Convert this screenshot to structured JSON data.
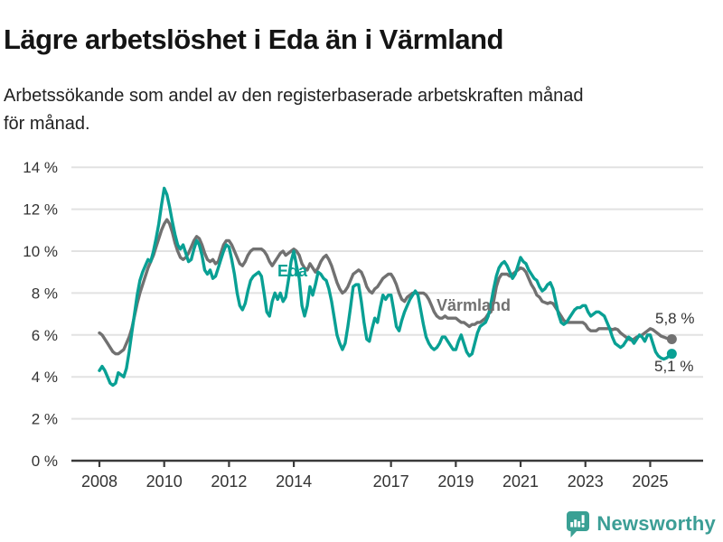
{
  "header": {
    "title": "Lägre arbetslöshet i Eda än i Värmland",
    "subtitle": "Arbetssökande som andel av den registerbaserade arbetskraften månad\nför månad."
  },
  "footer": {
    "brand": "Newsworthy"
  },
  "colors": {
    "eda": "#09A094",
    "varmland": "#717171",
    "axis": "#3A3A3A",
    "grid": "#E2E2E2",
    "text": "#333333",
    "logo": "#3AA094"
  },
  "chart_data": {
    "type": "line",
    "unit": "%",
    "frequency": "monthly",
    "x_start": "2008-01",
    "x_end": "2025-09",
    "ylim": [
      0,
      14
    ],
    "grid": true,
    "legend_position": "inline-labels",
    "ytick_values": [
      0,
      2,
      4,
      6,
      8,
      10,
      12,
      14
    ],
    "ytick_labels": [
      "0 %",
      "2 %",
      "4 %",
      "6 %",
      "8 %",
      "10 %",
      "12 %",
      "14 %"
    ],
    "xtick_years": [
      2008,
      2010,
      2012,
      2014,
      2017,
      2019,
      2021,
      2023,
      2025
    ],
    "series": [
      {
        "name": "Värmland",
        "color": "#717171",
        "end_value": 5.8,
        "end_label": "5,8 %",
        "values": [
          6.1,
          6.0,
          5.8,
          5.6,
          5.4,
          5.2,
          5.1,
          5.1,
          5.2,
          5.3,
          5.6,
          5.9,
          6.3,
          6.9,
          7.5,
          8.0,
          8.4,
          8.8,
          9.2,
          9.5,
          9.8,
          10.2,
          10.6,
          11.0,
          11.3,
          11.5,
          11.3,
          10.9,
          10.4,
          10.0,
          9.7,
          9.6,
          9.7,
          9.9,
          10.2,
          10.5,
          10.7,
          10.6,
          10.3,
          9.9,
          9.6,
          9.5,
          9.6,
          9.4,
          9.5,
          9.9,
          10.3,
          10.5,
          10.5,
          10.3,
          10.0,
          9.7,
          9.4,
          9.3,
          9.5,
          9.8,
          10.0,
          10.1,
          10.1,
          10.1,
          10.1,
          10.0,
          9.8,
          9.5,
          9.3,
          9.5,
          9.7,
          9.9,
          10.0,
          9.8,
          9.9,
          10.0,
          10.1,
          10.0,
          9.8,
          9.4,
          9.2,
          9.1,
          9.4,
          9.2,
          9.0,
          9.2,
          9.5,
          9.7,
          9.8,
          9.6,
          9.3,
          8.9,
          8.5,
          8.2,
          8.0,
          8.1,
          8.3,
          8.6,
          8.9,
          9.0,
          9.1,
          9.0,
          8.7,
          8.3,
          8.1,
          8.0,
          8.2,
          8.3,
          8.5,
          8.7,
          8.8,
          8.9,
          8.9,
          8.7,
          8.4,
          8.0,
          7.7,
          7.6,
          7.8,
          7.9,
          8.0,
          8.0,
          8.0,
          8.0,
          8.0,
          7.9,
          7.7,
          7.4,
          7.1,
          6.9,
          6.8,
          6.8,
          6.9,
          6.8,
          6.8,
          6.8,
          6.8,
          6.7,
          6.6,
          6.6,
          6.5,
          6.4,
          6.5,
          6.5,
          6.6,
          6.6,
          6.7,
          6.8,
          7.0,
          7.1,
          7.6,
          8.3,
          8.7,
          8.9,
          8.9,
          8.9,
          8.8,
          8.9,
          9.0,
          9.1,
          9.2,
          9.15,
          9.0,
          8.7,
          8.4,
          8.2,
          7.9,
          7.8,
          7.6,
          7.55,
          7.5,
          7.55,
          7.5,
          7.3,
          7.1,
          6.9,
          6.7,
          6.6,
          6.6,
          6.6,
          6.6,
          6.6,
          6.6,
          6.6,
          6.5,
          6.3,
          6.2,
          6.2,
          6.2,
          6.3,
          6.3,
          6.3,
          6.3,
          6.3,
          6.25,
          6.3,
          6.25,
          6.1,
          6.0,
          5.9,
          5.8,
          5.75,
          5.8,
          5.9,
          5.95,
          6.0,
          6.1,
          6.2,
          6.3,
          6.25,
          6.15,
          6.05,
          5.95,
          5.9,
          5.85,
          5.8,
          5.8
        ]
      },
      {
        "name": "Eda",
        "color": "#09A094",
        "end_value": 5.1,
        "end_label": "5,1 %",
        "values": [
          4.3,
          4.5,
          4.3,
          4.0,
          3.7,
          3.6,
          3.7,
          4.2,
          4.1,
          4.0,
          4.4,
          5.2,
          6.1,
          7.0,
          7.9,
          8.6,
          9.0,
          9.3,
          9.6,
          9.5,
          10.0,
          10.6,
          11.3,
          12.2,
          13.0,
          12.7,
          12.1,
          11.4,
          10.8,
          10.3,
          10.1,
          10.3,
          9.9,
          9.5,
          9.6,
          10.1,
          10.5,
          10.3,
          9.8,
          9.1,
          8.9,
          9.1,
          8.7,
          8.8,
          9.2,
          9.6,
          10.0,
          10.3,
          10.2,
          9.6,
          8.9,
          8.0,
          7.4,
          7.2,
          7.5,
          8.1,
          8.6,
          8.8,
          8.9,
          9.0,
          8.8,
          8.0,
          7.1,
          6.9,
          7.6,
          8.0,
          7.7,
          8.0,
          7.6,
          7.8,
          8.6,
          9.5,
          10.0,
          9.3,
          8.7,
          7.4,
          6.9,
          7.4,
          8.3,
          7.9,
          8.4,
          9.0,
          8.9,
          8.7,
          8.6,
          8.2,
          7.6,
          6.8,
          6.0,
          5.6,
          5.3,
          5.6,
          6.4,
          7.3,
          8.3,
          8.4,
          8.4,
          7.6,
          6.6,
          5.8,
          5.7,
          6.3,
          6.8,
          6.6,
          7.3,
          7.9,
          7.7,
          7.9,
          7.9,
          7.2,
          6.4,
          6.2,
          6.7,
          7.1,
          7.4,
          7.7,
          7.9,
          8.1,
          7.9,
          7.2,
          6.5,
          5.9,
          5.6,
          5.4,
          5.3,
          5.4,
          5.6,
          5.9,
          5.9,
          5.7,
          5.5,
          5.3,
          5.3,
          5.7,
          6.0,
          5.6,
          5.2,
          5.0,
          5.1,
          5.6,
          6.1,
          6.4,
          6.5,
          6.6,
          6.9,
          7.5,
          8.2,
          8.8,
          9.2,
          9.4,
          9.5,
          9.3,
          9.0,
          8.7,
          8.9,
          9.3,
          9.7,
          9.5,
          9.4,
          9.1,
          8.9,
          8.7,
          8.6,
          8.3,
          8.1,
          8.2,
          8.4,
          8.5,
          8.2,
          7.6,
          7.0,
          6.6,
          6.5,
          6.6,
          6.8,
          7.0,
          7.2,
          7.3,
          7.3,
          7.4,
          7.4,
          7.1,
          6.9,
          7.0,
          7.1,
          7.1,
          7.0,
          6.9,
          6.6,
          6.3,
          5.9,
          5.6,
          5.5,
          5.4,
          5.5,
          5.7,
          5.9,
          5.8,
          5.6,
          5.8,
          6.0,
          5.9,
          5.7,
          6.0,
          6.0,
          5.6,
          5.2,
          5.0,
          4.9,
          4.85,
          4.9,
          5.0,
          5.1
        ]
      }
    ]
  }
}
